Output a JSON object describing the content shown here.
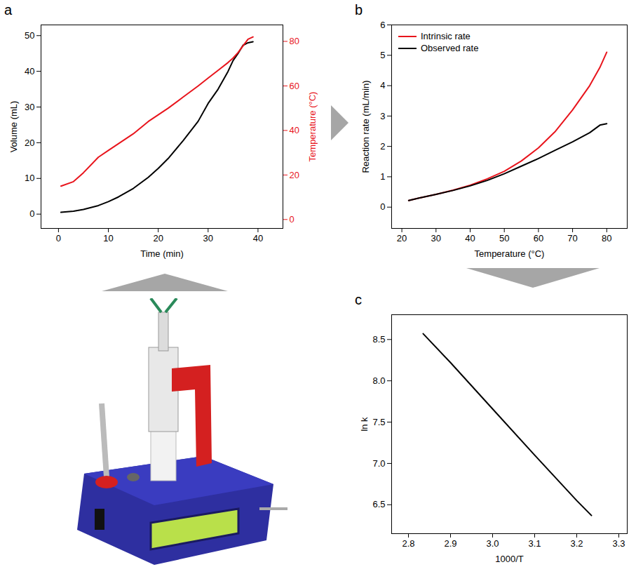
{
  "chart_data": [
    {
      "panel": "a",
      "type": "line",
      "x_label": "Time (min)",
      "y_label": "Volume (mL)",
      "y2_label": "Temperature (°C)",
      "xlim": [
        -3.5,
        45
      ],
      "xticks": [
        0,
        10,
        20,
        30,
        40
      ],
      "ylim": [
        -4,
        53
      ],
      "yticks": [
        0,
        10,
        20,
        30,
        40,
        50
      ],
      "y2lim": [
        -4,
        87.4
      ],
      "y2ticks": [
        0,
        20,
        40,
        60,
        80
      ],
      "x": [
        0.5,
        3,
        5,
        8,
        10,
        12,
        15,
        18,
        20,
        22,
        25,
        28,
        30,
        32,
        34,
        35,
        36,
        37,
        38,
        39
      ],
      "series": [
        {
          "name": "Volume",
          "color": "#000000",
          "axis": "y",
          "values": [
            0.5,
            0.8,
            1.3,
            2.4,
            3.5,
            4.8,
            7.2,
            10.3,
            12.8,
            15.6,
            20.6,
            26,
            31,
            35,
            40,
            43,
            45,
            47.3,
            48,
            48.3
          ]
        },
        {
          "name": "Temperature",
          "color": "#e8141c",
          "axis": "y2",
          "values": [
            15,
            17,
            21,
            28,
            31,
            34,
            38.5,
            44,
            47,
            50,
            55,
            60,
            63.5,
            67,
            70.5,
            72.5,
            75,
            78,
            81,
            82
          ]
        }
      ]
    },
    {
      "panel": "b",
      "type": "line",
      "legend": "top-left",
      "x_label": "Temperature (°C)",
      "y_label": "Reaction rate (mL/min)",
      "xlim": [
        17,
        86
      ],
      "xticks": [
        20,
        30,
        40,
        50,
        60,
        70,
        80
      ],
      "ylim": [
        -0.7,
        6
      ],
      "yticks": [
        0,
        1,
        2,
        3,
        4,
        5,
        6
      ],
      "x": [
        22,
        25,
        30,
        35,
        40,
        45,
        50,
        55,
        60,
        65,
        70,
        75,
        78,
        80
      ],
      "series": [
        {
          "name": "Intrinsic rate",
          "color": "#e8141c",
          "values": [
            0.22,
            0.3,
            0.42,
            0.56,
            0.72,
            0.93,
            1.18,
            1.52,
            1.95,
            2.5,
            3.2,
            4.0,
            4.6,
            5.1
          ]
        },
        {
          "name": "Observed rate",
          "color": "#000000",
          "values": [
            0.22,
            0.3,
            0.42,
            0.55,
            0.7,
            0.88,
            1.1,
            1.35,
            1.6,
            1.88,
            2.15,
            2.45,
            2.7,
            2.75
          ]
        }
      ]
    },
    {
      "panel": "c",
      "type": "line",
      "x_label": "1000/T",
      "y_label": "ln k",
      "xlim": [
        2.76,
        3.32
      ],
      "xticks": [
        2.8,
        2.9,
        {
          "value": 3,
          "label": "3.0"
        },
        3.1,
        3.2,
        3.3
      ],
      "ylim": [
        6.15,
        8.8
      ],
      "yticks": [
        6.5,
        {
          "value": 7,
          "label": "7.0"
        },
        7.5,
        {
          "value": 8,
          "label": "8.0"
        },
        8.5
      ],
      "x": [
        2.835,
        2.9,
        3.0,
        3.1,
        3.2,
        3.235
      ],
      "values": [
        8.57,
        8.22,
        7.66,
        7.1,
        6.55,
        6.37
      ],
      "color": "#000000"
    }
  ]
}
